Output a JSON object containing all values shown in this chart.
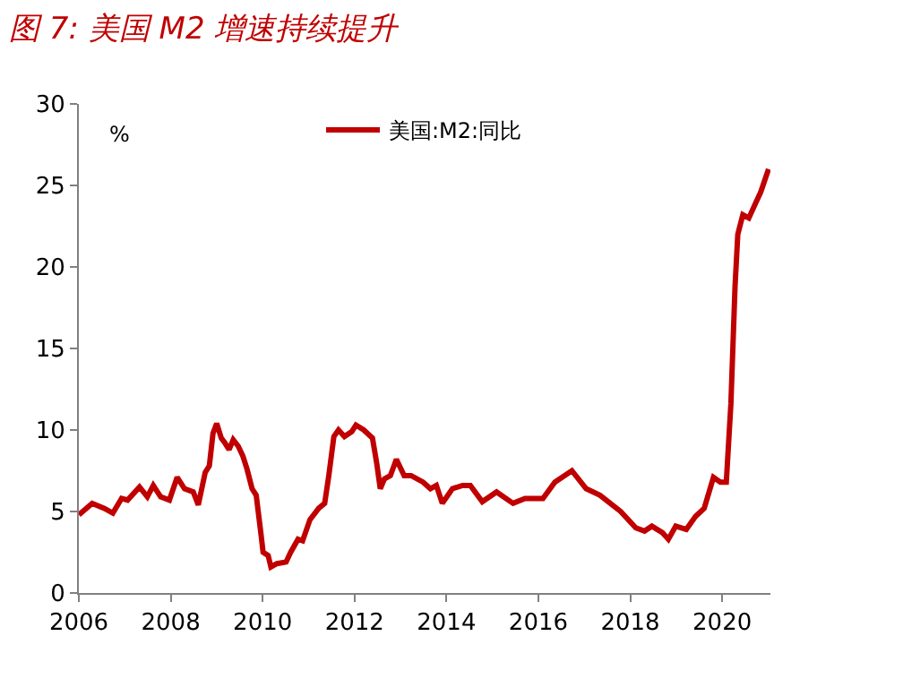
{
  "chart_data": {
    "type": "line",
    "title": "图 7: 美国 M2 增速持续提升",
    "ylabel": "%",
    "x": [
      2006,
      2006.29,
      2006.55,
      2006.74,
      2006.93,
      2007.06,
      2007.32,
      2007.49,
      2007.62,
      2007.78,
      2007.97,
      2008.14,
      2008.3,
      2008.49,
      2008.6,
      2008.75,
      2008.84,
      2008.92,
      2009.0,
      2009.1,
      2009.18,
      2009.27,
      2009.36,
      2009.47,
      2009.57,
      2009.66,
      2009.77,
      2009.86,
      2009.96,
      2010.01,
      2010.12,
      2010.18,
      2010.31,
      2010.51,
      2010.61,
      2010.77,
      2010.87,
      2011.03,
      2011.22,
      2011.35,
      2011.44,
      2011.55,
      2011.65,
      2011.78,
      2011.94,
      2012.03,
      2012.2,
      2012.39,
      2012.48,
      2012.56,
      2012.65,
      2012.78,
      2012.91,
      2013.08,
      2013.23,
      2013.49,
      2013.65,
      2013.78,
      2013.91,
      2014.13,
      2014.35,
      2014.52,
      2014.78,
      2015.09,
      2015.45,
      2015.71,
      2015.91,
      2016.1,
      2016.36,
      2016.73,
      2017.04,
      2017.34,
      2017.79,
      2018.12,
      2018.31,
      2018.47,
      2018.7,
      2018.83,
      2018.99,
      2019.22,
      2019.42,
      2019.61,
      2019.81,
      2019.96,
      2020.09,
      2020.19,
      2020.28,
      2020.34,
      2020.45,
      2020.58,
      2020.71,
      2020.84,
      2021.01
    ],
    "series": [
      {
        "name": "美国:M2:同比",
        "color": "#c00000",
        "values": [
          4.8,
          5.5,
          5.2,
          4.9,
          5.8,
          5.7,
          6.5,
          5.9,
          6.6,
          5.9,
          5.7,
          7.1,
          6.4,
          6.2,
          5.4,
          7.4,
          7.8,
          9.8,
          10.4,
          9.5,
          9.2,
          8.8,
          9.4,
          9.0,
          8.4,
          7.6,
          6.4,
          6.0,
          3.7,
          2.5,
          2.3,
          1.6,
          1.8,
          1.9,
          2.5,
          3.3,
          3.2,
          4.5,
          5.2,
          5.5,
          7.2,
          9.6,
          10.0,
          9.6,
          9.9,
          10.3,
          10.0,
          9.5,
          8.0,
          6.4,
          7.0,
          7.2,
          8.2,
          7.2,
          7.2,
          6.8,
          6.4,
          6.6,
          5.5,
          6.4,
          6.6,
          6.6,
          5.6,
          6.2,
          5.5,
          5.8,
          5.8,
          5.8,
          6.8,
          7.5,
          6.4,
          6.0,
          5.0,
          4.0,
          3.8,
          4.1,
          3.7,
          3.3,
          4.1,
          3.9,
          4.7,
          5.2,
          7.1,
          6.8,
          6.8,
          11.6,
          18.8,
          22.0,
          23.2,
          23.0,
          23.8,
          24.6,
          26.0
        ]
      }
    ],
    "xlim": [
      2006,
      2021.05
    ],
    "xticks": [
      2006,
      2008,
      2010,
      2012,
      2014,
      2016,
      2018,
      2020
    ],
    "ylim": [
      0,
      30
    ],
    "yticks": [
      0,
      5,
      10,
      15,
      20,
      25,
      30
    ],
    "legend": "top",
    "marker": "none",
    "line_style": "solid"
  }
}
